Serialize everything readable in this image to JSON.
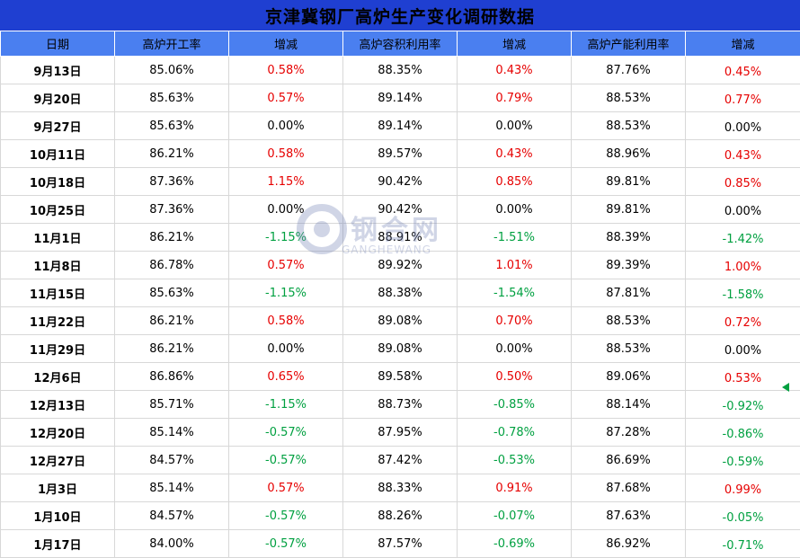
{
  "title": "京津冀钢厂高炉生产变化调研数据",
  "columns": [
    "日期",
    "高炉开工率",
    "增减",
    "高炉容积利用率",
    "增减",
    "高炉产能利用率",
    "增减"
  ],
  "rows": [
    {
      "date": "9月13日",
      "open": "85.06%",
      "d1": "0.58%",
      "vol": "88.35%",
      "d2": "0.43%",
      "cap": "87.76%",
      "d3": "0.45%"
    },
    {
      "date": "9月20日",
      "open": "85.63%",
      "d1": "0.57%",
      "vol": "89.14%",
      "d2": "0.79%",
      "cap": "88.53%",
      "d3": "0.77%"
    },
    {
      "date": "9月27日",
      "open": "85.63%",
      "d1": "0.00%",
      "vol": "89.14%",
      "d2": "0.00%",
      "cap": "88.53%",
      "d3": "0.00%"
    },
    {
      "date": "10月11日",
      "open": "86.21%",
      "d1": "0.58%",
      "vol": "89.57%",
      "d2": "0.43%",
      "cap": "88.96%",
      "d3": "0.43%"
    },
    {
      "date": "10月18日",
      "open": "87.36%",
      "d1": "1.15%",
      "vol": "90.42%",
      "d2": "0.85%",
      "cap": "89.81%",
      "d3": "0.85%"
    },
    {
      "date": "10月25日",
      "open": "87.36%",
      "d1": "0.00%",
      "vol": "90.42%",
      "d2": "0.00%",
      "cap": "89.81%",
      "d3": "0.00%"
    },
    {
      "date": "11月1日",
      "open": "86.21%",
      "d1": "-1.15%",
      "vol": "88.91%",
      "d2": "-1.51%",
      "cap": "88.39%",
      "d3": "-1.42%"
    },
    {
      "date": "11月8日",
      "open": "86.78%",
      "d1": "0.57%",
      "vol": "89.92%",
      "d2": "1.01%",
      "cap": "89.39%",
      "d3": "1.00%"
    },
    {
      "date": "11月15日",
      "open": "85.63%",
      "d1": "-1.15%",
      "vol": "88.38%",
      "d2": "-1.54%",
      "cap": "87.81%",
      "d3": "-1.58%"
    },
    {
      "date": "11月22日",
      "open": "86.21%",
      "d1": "0.58%",
      "vol": "89.08%",
      "d2": "0.70%",
      "cap": "88.53%",
      "d3": "0.72%"
    },
    {
      "date": "11月29日",
      "open": "86.21%",
      "d1": "0.00%",
      "vol": "89.08%",
      "d2": "0.00%",
      "cap": "88.53%",
      "d3": "0.00%"
    },
    {
      "date": "12月6日",
      "open": "86.86%",
      "d1": "0.65%",
      "vol": "89.58%",
      "d2": "0.50%",
      "cap": "89.06%",
      "d3": "0.53%"
    },
    {
      "date": "12月13日",
      "open": "85.71%",
      "d1": "-1.15%",
      "vol": "88.73%",
      "d2": "-0.85%",
      "cap": "88.14%",
      "d3": "-0.92%"
    },
    {
      "date": "12月20日",
      "open": "85.14%",
      "d1": "-0.57%",
      "vol": "87.95%",
      "d2": "-0.78%",
      "cap": "87.28%",
      "d3": "-0.86%"
    },
    {
      "date": "12月27日",
      "open": "84.57%",
      "d1": "-0.57%",
      "vol": "87.42%",
      "d2": "-0.53%",
      "cap": "86.69%",
      "d3": "-0.59%"
    },
    {
      "date": "1月3日",
      "open": "85.14%",
      "d1": "0.57%",
      "vol": "88.33%",
      "d2": "0.91%",
      "cap": "87.68%",
      "d3": "0.99%"
    },
    {
      "date": "1月10日",
      "open": "84.57%",
      "d1": "-0.57%",
      "vol": "88.26%",
      "d2": "-0.07%",
      "cap": "87.63%",
      "d3": "-0.05%"
    },
    {
      "date": "1月17日",
      "open": "84.00%",
      "d1": "-0.57%",
      "vol": "87.57%",
      "d2": "-0.69%",
      "cap": "86.92%",
      "d3": "-0.71%"
    }
  ],
  "watermark": {
    "cn": "钢合网",
    "en": "GANGHEWANG"
  },
  "colors": {
    "title_bg": "#1f3fd1",
    "header_bg": "#4a7ff0",
    "positive": "#e60000",
    "negative": "#00a040"
  }
}
